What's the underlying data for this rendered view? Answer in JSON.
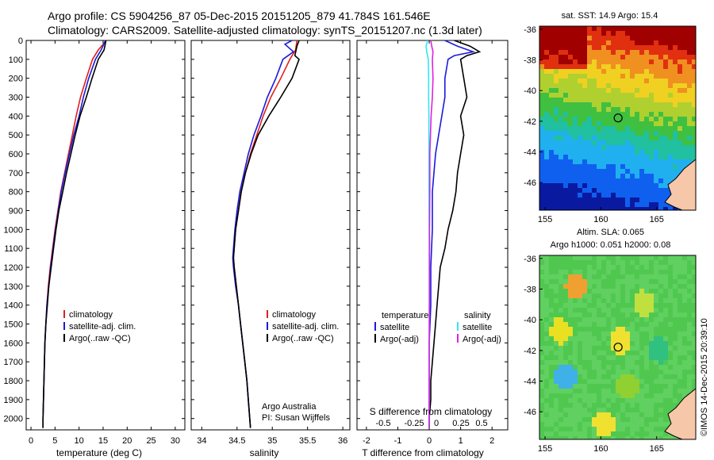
{
  "header": {
    "line1": "Argo profile: CS 5904256_87 05-Dec-2015 20151205_879 41.784S 161.546E",
    "line2": "Climatology: CARS2009. Satellite-adjusted climatology: synTS_20151207.nc (1.3d later)"
  },
  "colors": {
    "climatology": "#e0201a",
    "satellite": "#1a1adc",
    "argo": "#000000",
    "sat_salinity": "#30e8f0",
    "argo_salinity_adj": "#e020e0"
  },
  "depth_axis": {
    "ticks": [
      0,
      100,
      200,
      300,
      400,
      500,
      600,
      700,
      800,
      900,
      1000,
      1100,
      1200,
      1300,
      1400,
      1500,
      1600,
      1700,
      1800,
      1900,
      2000
    ],
    "ylim": [
      0,
      2060
    ]
  },
  "chart_data": [
    {
      "type": "line",
      "xlabel": "temperature (deg C)",
      "xlim": [
        -1,
        32
      ],
      "xticks": [
        0,
        5,
        10,
        15,
        20,
        25,
        30
      ],
      "ylim": [
        0,
        2060
      ],
      "legend": [
        "climatology",
        "satellite-adj. clim.",
        "Argo(..raw -QC)"
      ],
      "series": [
        {
          "name": "climatology",
          "color": "#e0201a",
          "depth": [
            20,
            50,
            100,
            200,
            300,
            400,
            500,
            600,
            700,
            800,
            900,
            1000,
            1100,
            1200,
            1300,
            1400,
            1500,
            1600,
            1700,
            1800,
            1900,
            2000,
            2050
          ],
          "values": [
            15.0,
            14.0,
            12.8,
            11.5,
            10.3,
            9.4,
            8.6,
            7.8,
            7.0,
            6.2,
            5.6,
            5.0,
            4.5,
            4.0,
            3.6,
            3.3,
            3.1,
            2.9,
            2.8,
            2.7,
            2.6,
            2.5,
            2.5
          ]
        },
        {
          "name": "satellite-adj. clim.",
          "color": "#1a1adc",
          "depth": [
            0,
            50,
            100,
            200,
            300,
            400,
            500,
            600,
            700,
            800,
            900,
            1000,
            1100,
            1200,
            1300,
            1400,
            1500,
            1600,
            1700,
            1800,
            1900,
            2000,
            2050
          ],
          "values": [
            15.5,
            14.6,
            13.4,
            12.0,
            10.9,
            10.0,
            8.9,
            8.0,
            7.1,
            6.3,
            5.7,
            5.1,
            4.6,
            4.1,
            3.7,
            3.3,
            3.1,
            2.9,
            2.8,
            2.7,
            2.6,
            2.5,
            2.5
          ]
        },
        {
          "name": "Argo(..raw -QC)",
          "color": "#000000",
          "depth": [
            0,
            50,
            100,
            200,
            300,
            400,
            500,
            600,
            700,
            800,
            900,
            1000,
            1100,
            1200,
            1300,
            1400,
            1500,
            1600,
            1700,
            1800,
            1900,
            2000,
            2050
          ],
          "values": [
            15.6,
            15.2,
            14.0,
            12.7,
            11.5,
            10.2,
            9.2,
            8.3,
            7.4,
            6.6,
            5.8,
            5.2,
            4.7,
            4.2,
            3.7,
            3.4,
            3.1,
            2.9,
            2.8,
            2.7,
            2.6,
            2.5,
            2.5
          ]
        }
      ]
    },
    {
      "type": "line",
      "xlabel": "salinity",
      "xlim": [
        33.85,
        36.1
      ],
      "xticks": [
        34,
        34.5,
        35,
        35.5,
        36
      ],
      "ylim": [
        0,
        2060
      ],
      "legend": [
        "climatology",
        "satellite-adj. clim.",
        "Argo(..raw -QC)"
      ],
      "annotation": [
        "Argo Australia",
        "PI: Susan Wijffels"
      ],
      "series": [
        {
          "name": "climatology",
          "color": "#e0201a",
          "depth": [
            0,
            50,
            100,
            200,
            300,
            400,
            500,
            600,
            700,
            800,
            900,
            1000,
            1100,
            1150,
            1200,
            1300,
            1400,
            1500,
            1600,
            1700,
            1800,
            1900,
            2000,
            2050
          ],
          "values": [
            35.35,
            35.33,
            35.25,
            35.12,
            34.98,
            34.87,
            34.78,
            34.69,
            34.62,
            34.56,
            34.52,
            34.48,
            34.46,
            34.45,
            34.46,
            34.49,
            34.52,
            34.55,
            34.58,
            34.61,
            34.64,
            34.66,
            34.68,
            34.69
          ]
        },
        {
          "name": "satellite-adj. clim.",
          "color": "#1a1adc",
          "depth": [
            0,
            20,
            60,
            100,
            200,
            300,
            400,
            500,
            600,
            700,
            800,
            900,
            1000,
            1100,
            1150,
            1200,
            1300,
            1400,
            1500,
            1600,
            1700,
            1800,
            1900,
            2000,
            2050
          ],
          "values": [
            35.28,
            35.18,
            35.3,
            35.15,
            35.05,
            34.93,
            34.84,
            34.74,
            34.66,
            34.6,
            34.54,
            34.5,
            34.47,
            34.45,
            34.44,
            34.45,
            34.48,
            34.52,
            34.55,
            34.58,
            34.61,
            34.64,
            34.66,
            34.68,
            34.69
          ]
        },
        {
          "name": "Argo(..raw -QC)",
          "color": "#000000",
          "depth": [
            0,
            30,
            80,
            100,
            200,
            300,
            400,
            500,
            600,
            700,
            800,
            900,
            1000,
            1100,
            1150,
            1200,
            1300,
            1400,
            1500,
            1600,
            1700,
            1800,
            1900,
            2000,
            2050
          ],
          "values": [
            35.38,
            35.35,
            35.32,
            35.38,
            35.28,
            35.12,
            34.95,
            34.8,
            34.7,
            34.62,
            34.56,
            34.52,
            34.48,
            34.46,
            34.45,
            34.46,
            34.49,
            34.52,
            34.55,
            34.58,
            34.61,
            34.64,
            34.66,
            34.68,
            34.69
          ]
        }
      ]
    },
    {
      "type": "line",
      "xlabel": "T difference from climatology",
      "xlabel_top": "S difference from climatology",
      "xlim": [
        -2.3,
        2.5
      ],
      "xticks": [
        -2,
        -1,
        0,
        1,
        2
      ],
      "xticks_top": [
        "-0.5",
        "-0.25",
        "0",
        "0.25",
        "0.5"
      ],
      "ylim": [
        0,
        2060
      ],
      "legend": [
        "temperature",
        "satellite",
        "Argo(-adj)",
        "salinity",
        "satellite",
        "Argo(-adj)"
      ],
      "series": [
        {
          "name": "temperature satellite",
          "color": "#1a1adc",
          "depth": [
            0,
            30,
            60,
            80,
            100,
            200,
            300,
            400,
            500,
            600,
            800,
            1000,
            1200,
            1400,
            1600,
            1800,
            2000,
            2050
          ],
          "values": [
            0.5,
            0.9,
            1.4,
            0.8,
            0.6,
            0.5,
            0.5,
            0.4,
            0.3,
            0.2,
            0.1,
            0.1,
            0.05,
            0.05,
            0.0,
            0.0,
            0.0,
            0.0
          ]
        },
        {
          "name": "temperature Argo(-adj)",
          "color": "#000000",
          "depth": [
            0,
            30,
            60,
            80,
            100,
            200,
            300,
            400,
            500,
            600,
            700,
            800,
            900,
            1000,
            1100,
            1200,
            1300,
            1400,
            1500,
            1600,
            1700,
            1800,
            1900,
            2000,
            2050
          ],
          "values": [
            0.8,
            1.3,
            1.6,
            1.2,
            1.0,
            1.1,
            1.2,
            1.0,
            1.1,
            1.0,
            0.9,
            0.85,
            0.75,
            0.6,
            0.5,
            0.35,
            0.3,
            0.25,
            0.2,
            0.15,
            0.1,
            0.05,
            0.05,
            0.0,
            0.0
          ]
        },
        {
          "name": "salinity satellite",
          "color": "#30e8f0",
          "depth": [
            0,
            30,
            60,
            100,
            200,
            300,
            400,
            500,
            600,
            800,
            1000,
            1200,
            1400,
            1600,
            1800,
            2000,
            2050
          ],
          "values": [
            -0.05,
            -0.1,
            -0.08,
            -0.03,
            -0.02,
            -0.02,
            -0.01,
            -0.01,
            -0.01,
            -0.01,
            0.0,
            0.0,
            0.0,
            0.0,
            0.0,
            0.0,
            0.0
          ]
        },
        {
          "name": "salinity Argo(-adj)",
          "color": "#e020e0",
          "depth": [
            0,
            30,
            60,
            100,
            200,
            300,
            400,
            500,
            600,
            800,
            1000,
            1200,
            1400,
            1600,
            1800,
            2000,
            2050
          ],
          "values": [
            0.05,
            0.08,
            0.12,
            0.1,
            0.12,
            0.1,
            0.06,
            0.04,
            0.02,
            0.02,
            0.01,
            0.01,
            0.01,
            0.0,
            0.0,
            0.0,
            0.0
          ]
        }
      ]
    },
    {
      "type": "heatmap",
      "title": "sat. SST: 14.9 Argo: 15.4",
      "yticks": [
        "-36",
        "-38",
        "-40",
        "-42",
        "-44",
        "-46"
      ],
      "xticks": [
        "155",
        "160",
        "165"
      ],
      "lat_range": [
        -47.8,
        -35.8
      ],
      "lon_range": [
        154.5,
        168.5
      ],
      "float_position": {
        "lat": -41.784,
        "lon": 161.546
      }
    },
    {
      "type": "heatmap",
      "title": "Altim. SLA: 0.065",
      "subtitle": "Argo h1000: 0.051 h2000: 0.08",
      "yticks": [
        "-36",
        "-38",
        "-40",
        "-42",
        "-44",
        "-46"
      ],
      "xticks": [
        "155",
        "160",
        "165"
      ],
      "lat_range": [
        -47.8,
        -35.8
      ],
      "lon_range": [
        154.5,
        168.5
      ],
      "float_position": {
        "lat": -41.784,
        "lon": 161.546
      }
    }
  ],
  "side_credit": "©IMOS 14-Dec-2015 20:39:10"
}
